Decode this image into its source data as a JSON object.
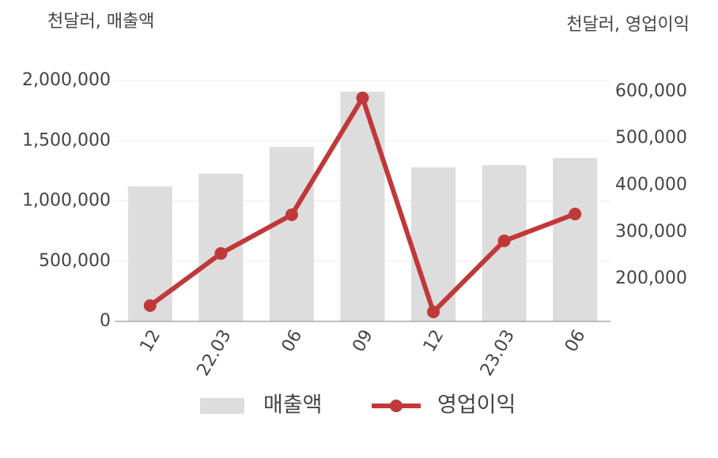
{
  "chart_data": {
    "type": "combo",
    "y_title": "천달러, 매출액",
    "y2_title": "천달러, 영업이익",
    "categories": [
      "12",
      "22.03",
      "06",
      "09",
      "12",
      "23.03",
      "06"
    ],
    "series": [
      {
        "name": "매출액",
        "type": "bar",
        "color": "#dddddd",
        "values": [
          1121000,
          1226000,
          1449000,
          1908000,
          1279000,
          1298000,
          1357000
        ]
      },
      {
        "name": "영업이익",
        "type": "line",
        "axis": "y2",
        "color": "#c0383a",
        "values": [
          142600,
          254000,
          336700,
          586500,
          129100,
          281000,
          338400
        ]
      }
    ],
    "ylim": [
      0,
      2000000
    ],
    "yticks": [
      {
        "value": 0,
        "label": "0"
      },
      {
        "value": 500000,
        "label": "500,000"
      },
      {
        "value": 1000000,
        "label": "1,000,000"
      },
      {
        "value": 1500000,
        "label": "1,500,000"
      },
      {
        "value": 2000000,
        "label": "2,000,000"
      }
    ],
    "y2lim": [
      108900,
      623600
    ],
    "y2ticks": [
      {
        "value": 200000,
        "label": "200,000"
      },
      {
        "value": 300000,
        "label": "300,000"
      },
      {
        "value": 400000,
        "label": "400,000"
      },
      {
        "value": 500000,
        "label": "500,000"
      },
      {
        "value": 600000,
        "label": "600,000"
      }
    ],
    "grid": true
  }
}
